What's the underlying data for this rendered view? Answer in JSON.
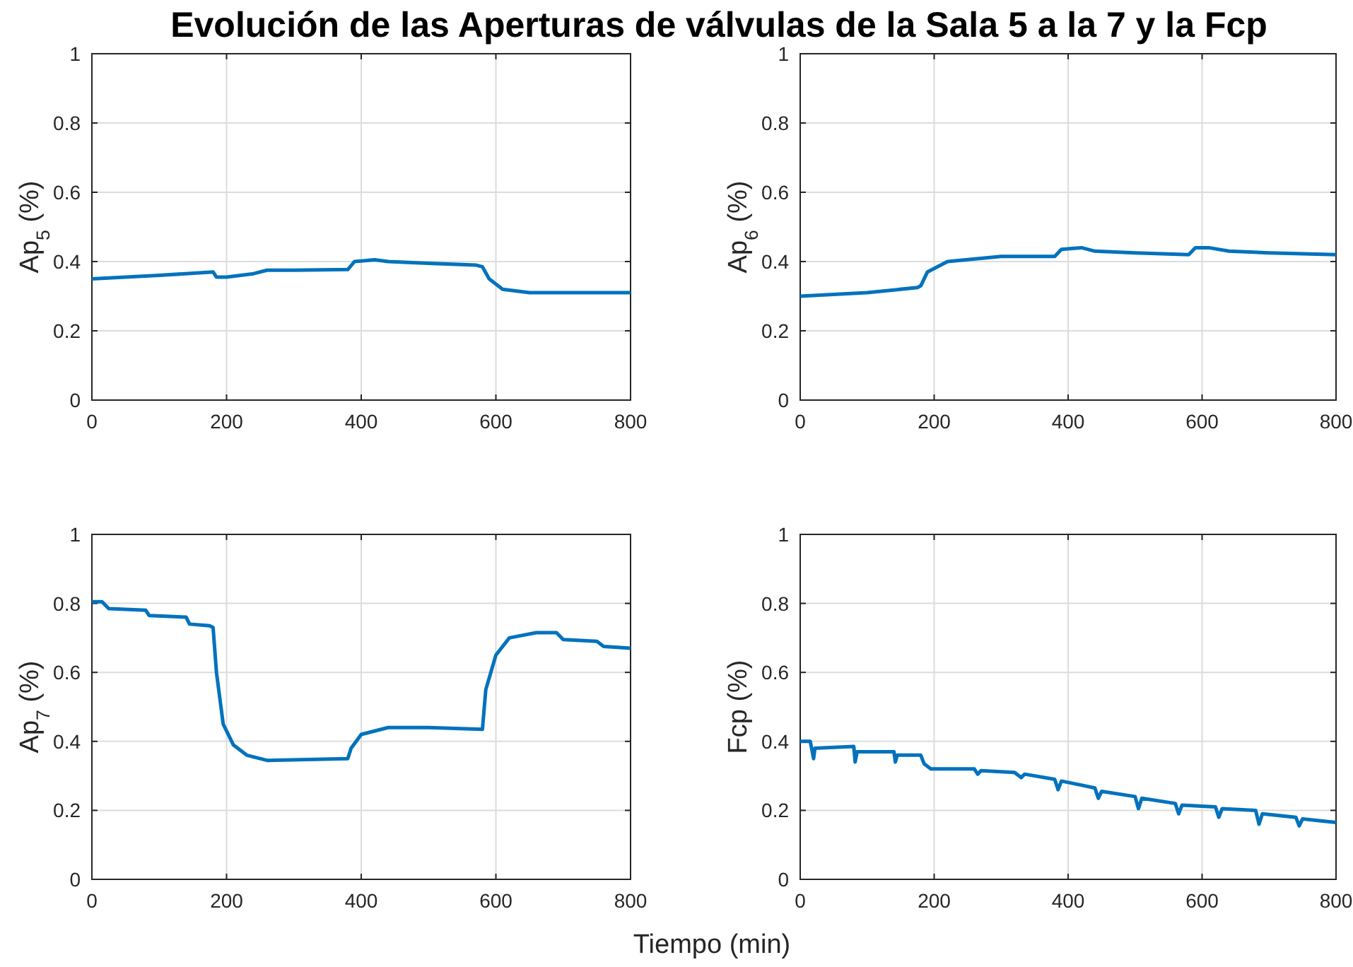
{
  "chart_data": [
    {
      "type": "line",
      "title": "Evolución de las Aperturas de válvulas de la Sala 5 a la 7 y la Fcp",
      "ylabel": "Ap$_{5}$ (%)",
      "xlim": [
        0,
        800
      ],
      "ylim": [
        0,
        1
      ],
      "xticks": [
        0,
        200,
        400,
        600,
        800
      ],
      "yticks": [
        0,
        0.2,
        0.4,
        0.6,
        0.8,
        1
      ],
      "grid": true,
      "series": [
        {
          "color": "#0072bd",
          "x": [
            0,
            100,
            180,
            185,
            200,
            240,
            260,
            300,
            380,
            390,
            420,
            440,
            500,
            570,
            580,
            590,
            610,
            650,
            800
          ],
          "values": [
            0.35,
            0.36,
            0.37,
            0.355,
            0.355,
            0.365,
            0.375,
            0.375,
            0.377,
            0.4,
            0.405,
            0.4,
            0.395,
            0.39,
            0.385,
            0.35,
            0.32,
            0.31,
            0.31
          ]
        }
      ]
    },
    {
      "type": "line",
      "ylabel": "Ap$_{6}$ (%)",
      "xlim": [
        0,
        800
      ],
      "ylim": [
        0,
        1
      ],
      "xticks": [
        0,
        200,
        400,
        600,
        800
      ],
      "yticks": [
        0,
        0.2,
        0.4,
        0.6,
        0.8,
        1
      ],
      "grid": true,
      "series": [
        {
          "color": "#0072bd",
          "x": [
            0,
            100,
            175,
            180,
            190,
            220,
            300,
            380,
            390,
            420,
            440,
            500,
            580,
            590,
            610,
            640,
            700,
            800
          ],
          "values": [
            0.3,
            0.31,
            0.325,
            0.33,
            0.37,
            0.4,
            0.415,
            0.415,
            0.435,
            0.44,
            0.43,
            0.425,
            0.42,
            0.44,
            0.44,
            0.43,
            0.425,
            0.42
          ]
        }
      ]
    },
    {
      "type": "line",
      "ylabel": "Ap$_{7}$ (%)",
      "xlabel": "Tiempo (min)",
      "xlim": [
        0,
        800
      ],
      "ylim": [
        0,
        1
      ],
      "xticks": [
        0,
        200,
        400,
        600,
        800
      ],
      "yticks": [
        0,
        0.2,
        0.4,
        0.6,
        0.8,
        1
      ],
      "grid": true,
      "series": [
        {
          "color": "#0072bd",
          "x": [
            0,
            15,
            25,
            80,
            85,
            140,
            145,
            175,
            180,
            185,
            195,
            210,
            230,
            260,
            380,
            385,
            400,
            440,
            500,
            580,
            585,
            600,
            620,
            660,
            690,
            700,
            750,
            760,
            800
          ],
          "values": [
            0.805,
            0.805,
            0.785,
            0.78,
            0.765,
            0.76,
            0.74,
            0.735,
            0.73,
            0.6,
            0.45,
            0.39,
            0.36,
            0.345,
            0.35,
            0.38,
            0.42,
            0.44,
            0.44,
            0.435,
            0.55,
            0.65,
            0.7,
            0.715,
            0.715,
            0.695,
            0.69,
            0.675,
            0.67
          ]
        }
      ]
    },
    {
      "type": "line",
      "ylabel": "Fcp (%)",
      "xlim": [
        0,
        800
      ],
      "ylim": [
        0,
        1
      ],
      "xticks": [
        0,
        200,
        400,
        600,
        800
      ],
      "yticks": [
        0,
        0.2,
        0.4,
        0.6,
        0.8,
        1
      ],
      "grid": true,
      "series": [
        {
          "color": "#0072bd",
          "x": [
            0,
            15,
            20,
            22,
            80,
            82,
            85,
            140,
            142,
            145,
            180,
            185,
            195,
            260,
            265,
            270,
            320,
            330,
            335,
            380,
            385,
            390,
            440,
            445,
            450,
            500,
            505,
            510,
            560,
            565,
            570,
            620,
            625,
            630,
            680,
            685,
            690,
            740,
            745,
            750,
            800
          ],
          "values": [
            0.4,
            0.4,
            0.35,
            0.38,
            0.385,
            0.34,
            0.37,
            0.37,
            0.34,
            0.36,
            0.36,
            0.335,
            0.32,
            0.32,
            0.305,
            0.315,
            0.31,
            0.295,
            0.305,
            0.29,
            0.26,
            0.285,
            0.265,
            0.235,
            0.255,
            0.24,
            0.205,
            0.235,
            0.22,
            0.19,
            0.215,
            0.21,
            0.18,
            0.205,
            0.2,
            0.16,
            0.19,
            0.18,
            0.155,
            0.175,
            0.165
          ]
        }
      ]
    }
  ]
}
